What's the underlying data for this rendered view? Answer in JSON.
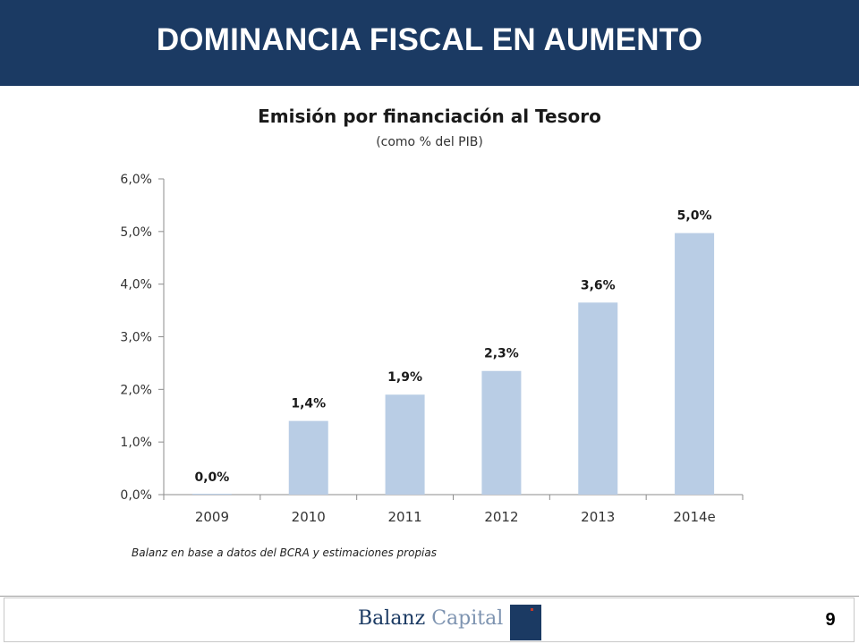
{
  "header": {
    "title": "DOMINANCIA FISCAL EN AUMENTO"
  },
  "chart_data": {
    "type": "bar",
    "title": "Emisión por financiación al Tesoro",
    "subtitle": "(como % del PIB)",
    "categories": [
      "2009",
      "2010",
      "2011",
      "2012",
      "2013",
      "2014e"
    ],
    "values": [
      0.0,
      1.4,
      1.9,
      2.35,
      3.65,
      4.97
    ],
    "data_labels": [
      "0,0%",
      "1,4%",
      "1,9%",
      "2,3%",
      "3,6%",
      "5,0%"
    ],
    "y_ticks": [
      0,
      1,
      2,
      3,
      4,
      5,
      6
    ],
    "y_tick_labels": [
      "0,0%",
      "1,0%",
      "2,0%",
      "3,0%",
      "4,0%",
      "5,0%",
      "6,0%"
    ],
    "ylim": [
      0,
      6
    ],
    "xlabel": "",
    "ylabel": "",
    "bar_color": "#b9cde5",
    "axis_color": "#8c8c8c",
    "grid": false,
    "legend": false
  },
  "source_note": "Balanz en base a datos del BCRA y estimaciones propias",
  "footer": {
    "brand_primary": "Balanz",
    "brand_secondary": "Capital",
    "page_number": "9"
  },
  "colors": {
    "header_bg": "#1b3a63",
    "brand": "#1b3a63"
  }
}
